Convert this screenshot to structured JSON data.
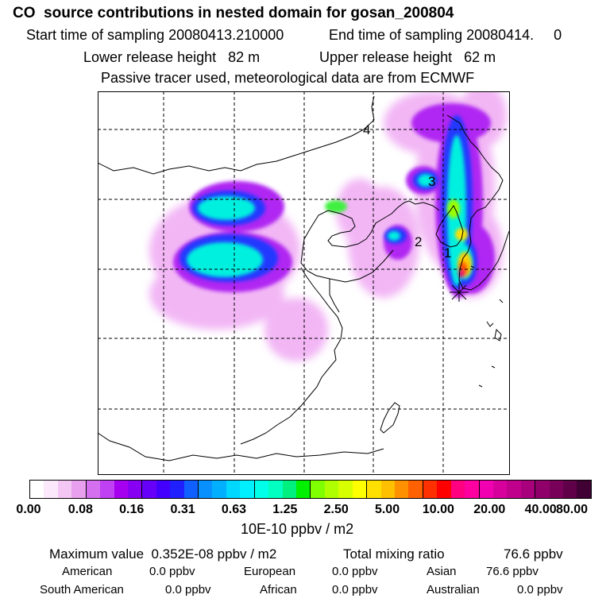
{
  "header": {
    "title": "CO  source contributions in nested domain for gosan_200804",
    "start_label": "Start time of sampling 20080413.210000",
    "end_label": "End time of sampling 20080414.     0",
    "lower_release": "Lower release height   82 m",
    "upper_release": "Upper release height   62 m",
    "tracer_note": "Passive tracer used, meteorological data are from ECMWF"
  },
  "map": {
    "labels": [
      "1",
      "2",
      "3",
      "4"
    ]
  },
  "colorbar": {
    "colors": [
      "#ffffff",
      "#fbe8fb",
      "#f3c6f3",
      "#e8a0ee",
      "#d470f0",
      "#c040f4",
      "#a600f0",
      "#8800f4",
      "#6600f8",
      "#4400ff",
      "#2020ff",
      "#1060ff",
      "#0890ff",
      "#00b0ff",
      "#00d8ff",
      "#00f0ff",
      "#00ffe8",
      "#00ffc0",
      "#00f080",
      "#00f000",
      "#80ff00",
      "#b0ff00",
      "#d8ff00",
      "#ffff00",
      "#ffe000",
      "#ffc000",
      "#ff9000",
      "#ff6000",
      "#ff3000",
      "#ff0000",
      "#ff0080",
      "#ff00a0",
      "#f000b0",
      "#d8009c",
      "#c0008c",
      "#a8007c",
      "#90006a",
      "#780058",
      "#600048",
      "#400034"
    ],
    "ticks": [
      "0.00",
      "0.08",
      "0.16",
      "0.31",
      "0.63",
      "1.25",
      "2.50",
      "5.00",
      "10.00",
      "20.00",
      "40.00",
      "80.00"
    ],
    "unit": "10E-10 ppbv / m2"
  },
  "footer": {
    "max_value": "Maximum value  0.352E-08 ppbv / m2",
    "total_mixing": "Total mixing ratio",
    "total_value": "76.6 ppbv",
    "regions": [
      {
        "name": "American",
        "value": "0.0 ppbv"
      },
      {
        "name": "European",
        "value": "0.0 ppbv"
      },
      {
        "name": "Asian",
        "value": "76.6 ppbv"
      },
      {
        "name": "South American",
        "value": "0.0 ppbv"
      },
      {
        "name": "African",
        "value": "0.0 ppbv"
      },
      {
        "name": "Australian",
        "value": "0.0 ppbv"
      }
    ]
  }
}
